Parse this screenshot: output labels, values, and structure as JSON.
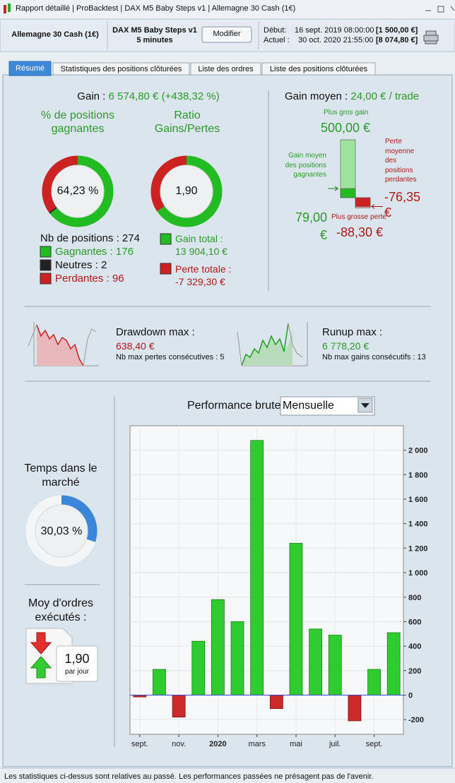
{
  "window": {
    "tabs": [
      "Rapport détaillé",
      "ProBacktest",
      "DAX M5 Baby Steps v1",
      "Allemagne 30 Cash (1€)"
    ]
  },
  "header": {
    "instrument": "Allemagne 30 Cash (1€)",
    "strategy": "DAX M5 Baby Steps v1",
    "timeframe": "5 minutes",
    "button": "Modifier",
    "start_label": "Début:",
    "start_date": "16 sept. 2019 08:00:00",
    "start_capital": "[1 500,00 €]",
    "current_label": "Actuel :",
    "current_date": "30 oct. 2020 21:55:00",
    "current_capital": "[8 074,80 €]"
  },
  "tabs": [
    "Résumé",
    "Statistiques des positions clôturées",
    "Liste des ordres",
    "Liste des positions clôturées"
  ],
  "summary": {
    "gain_label": "Gain :",
    "gain": "6 574,80 € (+438,32 %)",
    "win_rate_title": "% de positions gagnantes",
    "win_rate": "64,23 %",
    "ratio_title": "Ratio Gains/Pertes",
    "ratio": "1,90",
    "positions": {
      "total": {
        "label": "Nb de positions :",
        "value": 274
      },
      "winners": {
        "label": "Gagnantes :",
        "value": 176,
        "color": "#22bb22"
      },
      "neutral": {
        "label": "Neutres :",
        "value": 2,
        "color": "#222222"
      },
      "losers": {
        "label": "Perdantes :",
        "value": 96,
        "color": "#cc2222"
      }
    },
    "gain_total": {
      "label": "Gain total :",
      "value": 13904.1,
      "value_label": "13 904,10 €",
      "color": "#22bb22"
    },
    "loss_total": {
      "label": "Perte totale :",
      "value": -7329.3,
      "value_label": "-7 329,30 €",
      "color": "#cc2222"
    }
  },
  "average": {
    "label": "Gain moyen :",
    "value": "24,00 € / trade",
    "max_gain": {
      "label": "Plus gros gain",
      "value": 500,
      "value_label": "500,00 €"
    },
    "avg_win": {
      "label": "Gain moyen des positions gagnantes",
      "value": 79,
      "value_label": "79,00 €"
    },
    "avg_loss": {
      "label": "Perte moyenne des positions perdantes",
      "value": -76.35,
      "value_label": "-76,35 €"
    },
    "max_loss": {
      "label": "Plus grosse perte",
      "value": -88.3,
      "value_label": "-88,30 €"
    }
  },
  "drawdown": {
    "label": "Drawdown max :",
    "value": "638,40 €",
    "note": "Nb max pertes consécutives : 5"
  },
  "runup": {
    "label": "Runup max :",
    "value": "6 778,20 €",
    "note": "Nb max gains consécutifs : 13"
  },
  "time_in_market": {
    "label": "Temps dans le marché",
    "value": 30.03,
    "value_label": "30,03 %",
    "color": "#3a86d8"
  },
  "orders": {
    "label": "Moy d'ordres exécutés :",
    "value": "1,90",
    "unit": "par jour"
  },
  "chart_data": {
    "type": "bar",
    "title": "Performance brute",
    "period": "Mensuelle",
    "categories": [
      "sept.",
      null,
      "nov.",
      null,
      "2020",
      null,
      "mars",
      null,
      "mai",
      null,
      "juil.",
      null,
      "sept.",
      null
    ],
    "values": [
      -15,
      210,
      -180,
      440,
      780,
      600,
      2080,
      -110,
      1240,
      540,
      490,
      -210,
      210,
      510
    ],
    "positive_color": "#2ecc2e",
    "negative_color": "#cc2a2a",
    "ylim": [
      -320,
      2200
    ],
    "yticks": [
      -200,
      0,
      200,
      400,
      600,
      800,
      {
        "value": 1000,
        "label": "1 000"
      },
      {
        "value": 1200,
        "label": "1 200"
      },
      {
        "value": 1400,
        "label": "1 400"
      },
      {
        "value": 1600,
        "label": "1 600"
      },
      {
        "value": 1800,
        "label": "1 800"
      },
      {
        "value": 2000,
        "label": "2 000"
      }
    ],
    "grid": true
  },
  "footer": "Les statistiques ci-dessus sont relatives au passé. Les performances passées ne présagent pas de l'avenir."
}
